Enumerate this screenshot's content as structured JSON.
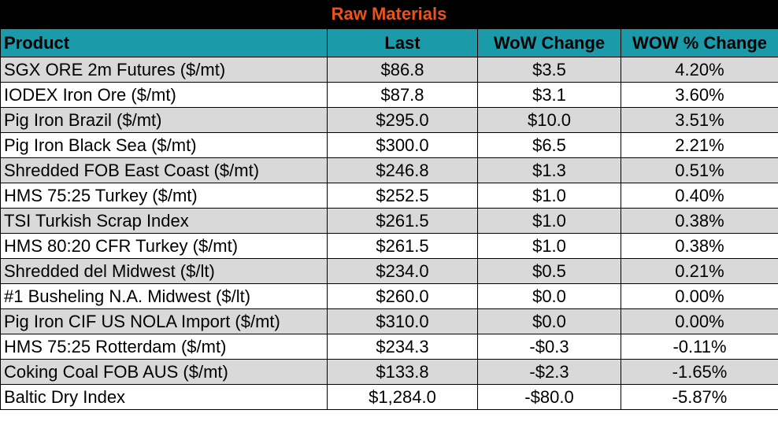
{
  "title": "Raw Materials",
  "columns": [
    "Product",
    "Last",
    "WoW Change",
    "WOW % Change"
  ],
  "rows": [
    [
      "SGX ORE 2m Futures ($/mt)",
      "$86.8",
      "$3.5",
      "4.20%"
    ],
    [
      "IODEX  Iron Ore ($/mt)",
      "$87.8",
      "$3.1",
      "3.60%"
    ],
    [
      "Pig Iron Brazil ($/mt)",
      "$295.0",
      "$10.0",
      "3.51%"
    ],
    [
      "Pig Iron Black Sea ($/mt)",
      "$300.0",
      "$6.5",
      "2.21%"
    ],
    [
      "Shredded FOB East Coast ($/mt)",
      "$246.8",
      "$1.3",
      "0.51%"
    ],
    [
      "HMS 75:25 Turkey ($/mt)",
      "$252.5",
      "$1.0",
      "0.40%"
    ],
    [
      "TSI Turkish Scrap Index",
      "$261.5",
      "$1.0",
      "0.38%"
    ],
    [
      "HMS 80:20 CFR Turkey ($/mt)",
      "$261.5",
      "$1.0",
      "0.38%"
    ],
    [
      "Shredded del  Midwest ($/lt)",
      "$234.0",
      "$0.5",
      "0.21%"
    ],
    [
      "#1 Busheling N.A. Midwest ($/lt)",
      "$260.0",
      "$0.0",
      "0.00%"
    ],
    [
      "Pig Iron CIF US NOLA Import ($/mt)",
      "$310.0",
      "$0.0",
      "0.00%"
    ],
    [
      "HMS 75:25 Rotterdam ($/mt)",
      "$234.3",
      "-$0.3",
      "-0.11%"
    ],
    [
      "Coking Coal FOB AUS ($/mt)",
      "$133.8",
      "-$2.3",
      "-1.65%"
    ],
    [
      "Baltic Dry Index",
      "$1,284.0",
      "-$80.0",
      "-5.87%"
    ]
  ],
  "colors": {
    "title_bg": "#000000",
    "title_text": "#e8541c",
    "header_bg": "#1b9aaa",
    "row_shade": "#d9d9d9",
    "row_plain": "#ffffff"
  }
}
